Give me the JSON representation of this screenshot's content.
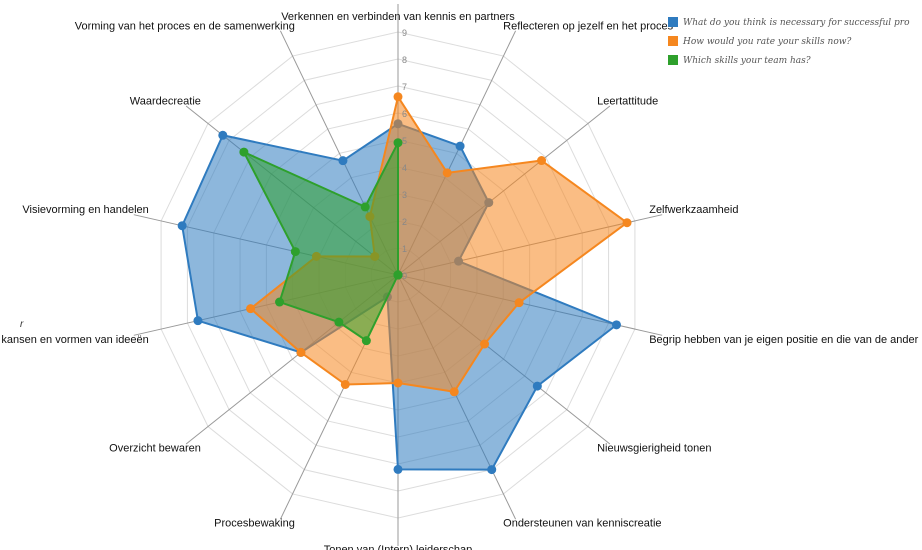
{
  "chart_data": {
    "type": "radar",
    "axes": [
      "Verkennen en verbinden van kennis en partners",
      "Reflecteren op jezelf en het proces",
      "Leertattitude",
      "Zelfwerkzaamheid",
      "Begrip hebben van je eigen positie en die van de ander",
      "Nieuwsgierigheid tonen",
      "Ondersteunen van kenniscreatie",
      "Tonen van (Intern) leiderschap",
      "Procesbewaking",
      "Overzicht bewaren",
      "van kansen en vormen van ideeën",
      "Visievorming en handelen",
      "Waardecreatie",
      "Vorming van het proces en de samenwerking"
    ],
    "ticks": [
      "0",
      "1",
      "2",
      "3",
      "4",
      "5",
      "6",
      "7",
      "8",
      "9"
    ],
    "range": [
      0,
      9
    ],
    "series": [
      {
        "name": "What do you think is necessary for successful pro",
        "color": "#2f7bbf",
        "values": [
          5.6,
          5.3,
          4.3,
          2.3,
          8.3,
          6.6,
          8.0,
          7.2,
          0.9,
          4.6,
          7.6,
          8.2,
          8.3,
          4.7
        ]
      },
      {
        "name": "How would you rate your skills now?",
        "color": "#f5871f",
        "values": [
          6.6,
          4.2,
          6.8,
          8.7,
          4.6,
          4.1,
          4.8,
          4.0,
          4.5,
          4.6,
          5.6,
          3.1,
          1.1,
          2.4
        ]
      },
      {
        "name": "Which skills your team has?",
        "color": "#2ea02c",
        "values": [
          4.9,
          0,
          0,
          0,
          0,
          0,
          0,
          0,
          2.7,
          2.8,
          4.5,
          3.9,
          7.3,
          2.8
        ]
      }
    ],
    "legend_position": "top-right",
    "grid": true
  },
  "stray_label": "r"
}
